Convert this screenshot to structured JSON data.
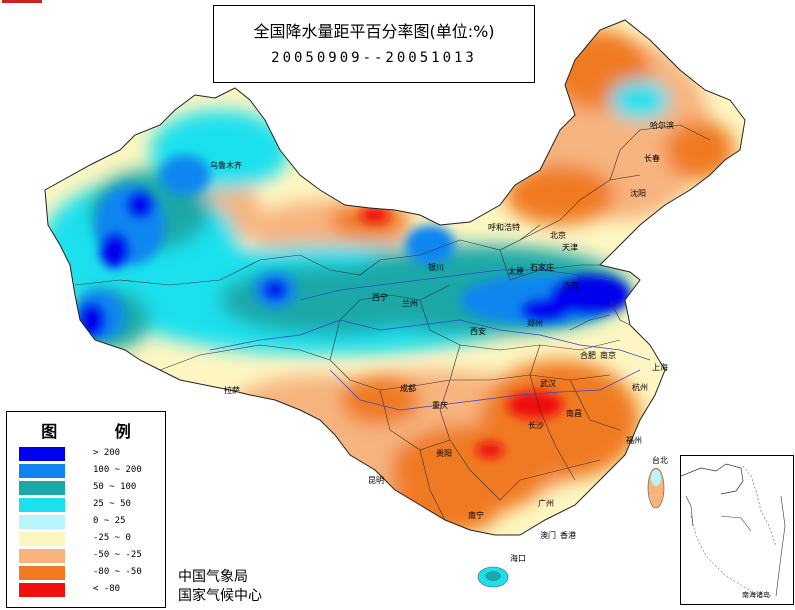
{
  "title": {
    "line1": "全国降水量距平百分率图(单位:%)",
    "line2": "20050909--20051013"
  },
  "legend": {
    "title": "图 例",
    "items": [
      {
        "label": "> 200",
        "color": "#0000ee"
      },
      {
        "label": "100 ~ 200",
        "color": "#0d86f0"
      },
      {
        "label": "50 ~ 100",
        "color": "#1aa8a8"
      },
      {
        "label": "25 ~ 50",
        "color": "#1ce0ee"
      },
      {
        "label": "0 ~ 25",
        "color": "#b8f6fc"
      },
      {
        "label": "-25 ~ 0",
        "color": "#fdf6c2"
      },
      {
        "label": "-50 ~ -25",
        "color": "#f7b47e"
      },
      {
        "label": "-80 ~ -50",
        "color": "#f07a22"
      },
      {
        "label": "< -80",
        "color": "#f01010"
      }
    ]
  },
  "agency": {
    "line1": "中国气象局",
    "line2": "国家气候中心"
  },
  "inset": {
    "label": "南海诸岛"
  },
  "cities": [
    {
      "name": "哈尔滨"
    },
    {
      "name": "长春"
    },
    {
      "name": "沈阳"
    },
    {
      "name": "呼和浩特"
    },
    {
      "name": "北京"
    },
    {
      "name": "天津"
    },
    {
      "name": "太原"
    },
    {
      "name": "石家庄"
    },
    {
      "name": "济南"
    },
    {
      "name": "银川"
    },
    {
      "name": "西宁"
    },
    {
      "name": "兰州"
    },
    {
      "name": "西安"
    },
    {
      "name": "郑州"
    },
    {
      "name": "合肥"
    },
    {
      "name": "南京"
    },
    {
      "name": "上海"
    },
    {
      "name": "杭州"
    },
    {
      "name": "武汉"
    },
    {
      "name": "成都"
    },
    {
      "name": "重庆"
    },
    {
      "name": "拉萨"
    },
    {
      "name": "长沙"
    },
    {
      "name": "南昌"
    },
    {
      "name": "福州"
    },
    {
      "name": "贵阳"
    },
    {
      "name": "昆明"
    },
    {
      "name": "南宁"
    },
    {
      "name": "广州"
    },
    {
      "name": "台北"
    },
    {
      "name": "海口"
    },
    {
      "name": "香港"
    },
    {
      "name": "澳门"
    },
    {
      "name": "乌鲁木齐"
    }
  ]
}
